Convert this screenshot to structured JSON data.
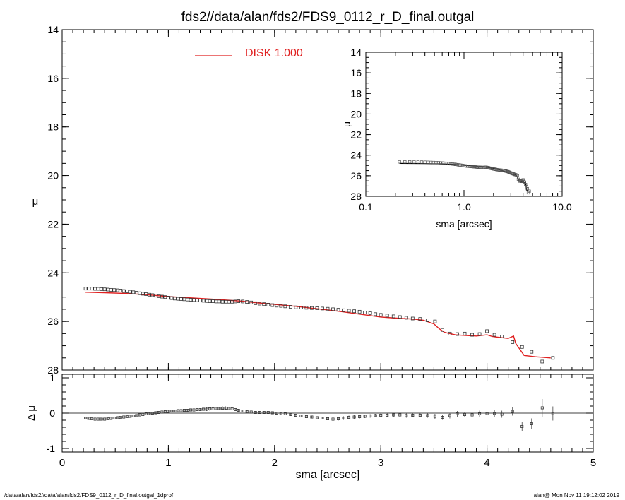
{
  "title": "fds2//data/alan/fds2/FDS9_0112_r_D_final.outgal",
  "footer": {
    "left": "/data/alan/fds2//data/alan/fds2/FDS9_0112_r_D_final.outgal_1dprof",
    "right": "alan@  Mon Nov 11 19:12:02 2019"
  },
  "colors": {
    "model": "#e02020",
    "data": "#000000",
    "frame": "#000000"
  },
  "chart_data": [
    {
      "type": "scatter",
      "name": "main",
      "xlim": [
        0,
        5
      ],
      "ylim": [
        14,
        28
      ],
      "inverted_y": true,
      "xticks": [
        0,
        1,
        2,
        3,
        4,
        5
      ],
      "yticks": [
        14,
        16,
        18,
        20,
        22,
        24,
        26,
        28
      ],
      "ylabel": "μ",
      "legend": {
        "label": "DISK  1.000",
        "placement": "top-center"
      },
      "data_x": [
        0.22,
        0.25,
        0.28,
        0.31,
        0.34,
        0.37,
        0.4,
        0.43,
        0.46,
        0.49,
        0.52,
        0.55,
        0.58,
        0.61,
        0.64,
        0.67,
        0.7,
        0.73,
        0.76,
        0.79,
        0.82,
        0.85,
        0.88,
        0.91,
        0.94,
        0.97,
        1.0,
        1.03,
        1.06,
        1.09,
        1.12,
        1.15,
        1.18,
        1.21,
        1.24,
        1.27,
        1.3,
        1.33,
        1.36,
        1.39,
        1.42,
        1.45,
        1.48,
        1.51,
        1.54,
        1.57,
        1.6,
        1.63,
        1.66,
        1.7,
        1.74,
        1.78,
        1.82,
        1.86,
        1.9,
        1.94,
        1.98,
        2.02,
        2.06,
        2.1,
        2.15,
        2.2,
        2.25,
        2.3,
        2.35,
        2.4,
        2.45,
        2.5,
        2.55,
        2.6,
        2.65,
        2.7,
        2.75,
        2.8,
        2.85,
        2.9,
        2.95,
        3.0,
        3.06,
        3.12,
        3.18,
        3.24,
        3.3,
        3.37,
        3.44,
        3.51,
        3.58,
        3.65,
        3.72,
        3.79,
        3.86,
        3.93,
        4.0,
        4.07,
        4.14,
        4.24,
        4.33,
        4.42,
        4.52,
        4.62
      ],
      "data_y": [
        24.65,
        24.65,
        24.65,
        24.66,
        24.66,
        24.67,
        24.68,
        24.69,
        24.7,
        24.71,
        24.72,
        24.73,
        24.75,
        24.76,
        24.78,
        24.8,
        24.82,
        24.84,
        24.86,
        24.88,
        24.9,
        24.92,
        24.94,
        24.96,
        24.98,
        25.0,
        25.02,
        25.04,
        25.06,
        25.07,
        25.08,
        25.09,
        25.1,
        25.11,
        25.12,
        25.13,
        25.14,
        25.15,
        25.16,
        25.17,
        25.17,
        25.18,
        25.18,
        25.19,
        25.19,
        25.19,
        25.19,
        25.18,
        25.17,
        25.18,
        25.2,
        25.22,
        25.25,
        25.27,
        25.29,
        25.31,
        25.33,
        25.35,
        25.36,
        25.38,
        25.4,
        25.42,
        25.43,
        25.44,
        25.45,
        25.46,
        25.47,
        25.48,
        25.5,
        25.52,
        25.54,
        25.56,
        25.58,
        25.6,
        25.63,
        25.66,
        25.7,
        25.73,
        25.76,
        25.79,
        25.82,
        25.85,
        25.88,
        25.9,
        25.95,
        26.0,
        26.35,
        26.5,
        26.52,
        26.5,
        26.55,
        26.52,
        26.4,
        26.55,
        26.62,
        26.85,
        27.05,
        27.25,
        27.65,
        27.5
      ],
      "model_x": [
        0.22,
        0.4,
        0.6,
        0.8,
        1.0,
        1.2,
        1.4,
        1.6,
        1.7,
        1.8,
        1.9,
        2.0,
        2.2,
        2.4,
        2.6,
        2.8,
        3.0,
        3.1,
        3.2,
        3.3,
        3.4,
        3.5,
        3.55,
        3.6,
        3.7,
        3.8,
        3.9,
        4.0,
        4.05,
        4.1,
        4.2,
        4.25,
        4.27,
        4.35,
        4.45,
        4.6
      ],
      "model_y": [
        24.8,
        24.82,
        24.85,
        24.9,
        24.98,
        25.03,
        25.08,
        25.14,
        25.17,
        25.22,
        25.26,
        25.3,
        25.38,
        25.48,
        25.58,
        25.7,
        25.82,
        25.85,
        25.88,
        25.9,
        25.95,
        26.1,
        26.3,
        26.45,
        26.55,
        26.58,
        26.6,
        26.55,
        26.62,
        26.65,
        26.7,
        26.6,
        26.9,
        27.4,
        27.45,
        27.5
      ]
    },
    {
      "type": "scatter",
      "name": "residuals",
      "xlim": [
        0,
        5
      ],
      "ylim": [
        -1.1,
        1.1
      ],
      "xticks": [
        0,
        1,
        2,
        3,
        4,
        5
      ],
      "yticks": [
        -1,
        0,
        1
      ],
      "xlabel": "sma [arcsec]",
      "ylabel": "Δ μ",
      "res_x": [
        0.22,
        0.25,
        0.28,
        0.31,
        0.34,
        0.37,
        0.4,
        0.43,
        0.46,
        0.49,
        0.52,
        0.55,
        0.58,
        0.61,
        0.64,
        0.67,
        0.7,
        0.73,
        0.76,
        0.79,
        0.82,
        0.85,
        0.88,
        0.91,
        0.94,
        0.97,
        1.0,
        1.03,
        1.06,
        1.09,
        1.12,
        1.15,
        1.18,
        1.21,
        1.24,
        1.27,
        1.3,
        1.33,
        1.36,
        1.39,
        1.42,
        1.45,
        1.48,
        1.51,
        1.54,
        1.57,
        1.6,
        1.63,
        1.66,
        1.7,
        1.74,
        1.78,
        1.82,
        1.86,
        1.9,
        1.94,
        1.98,
        2.02,
        2.06,
        2.1,
        2.15,
        2.2,
        2.25,
        2.3,
        2.35,
        2.4,
        2.45,
        2.5,
        2.55,
        2.6,
        2.65,
        2.7,
        2.75,
        2.8,
        2.85,
        2.9,
        2.95,
        3.0,
        3.06,
        3.12,
        3.18,
        3.24,
        3.3,
        3.37,
        3.44,
        3.51,
        3.58,
        3.65,
        3.72,
        3.79,
        3.86,
        3.93,
        4.0,
        4.07,
        4.14,
        4.24,
        4.33,
        4.42,
        4.52,
        4.62
      ],
      "res_y": [
        -0.14,
        -0.15,
        -0.16,
        -0.17,
        -0.17,
        -0.17,
        -0.17,
        -0.16,
        -0.15,
        -0.14,
        -0.13,
        -0.12,
        -0.11,
        -0.1,
        -0.09,
        -0.08,
        -0.07,
        -0.05,
        -0.04,
        -0.02,
        -0.01,
        0.0,
        0.01,
        0.02,
        0.03,
        0.04,
        0.05,
        0.06,
        0.06,
        0.07,
        0.07,
        0.08,
        0.08,
        0.09,
        0.09,
        0.1,
        0.1,
        0.11,
        0.11,
        0.12,
        0.12,
        0.13,
        0.13,
        0.14,
        0.14,
        0.13,
        0.12,
        0.1,
        0.08,
        0.06,
        0.04,
        0.03,
        0.02,
        0.02,
        0.02,
        0.02,
        0.01,
        0.0,
        -0.01,
        -0.02,
        -0.04,
        -0.06,
        -0.08,
        -0.1,
        -0.11,
        -0.13,
        -0.14,
        -0.16,
        -0.17,
        -0.16,
        -0.14,
        -0.12,
        -0.11,
        -0.1,
        -0.09,
        -0.08,
        -0.07,
        -0.06,
        -0.06,
        -0.05,
        -0.05,
        -0.07,
        -0.06,
        -0.06,
        -0.07,
        -0.09,
        -0.12,
        -0.07,
        -0.02,
        -0.04,
        -0.05,
        -0.02,
        -0.01,
        -0.01,
        -0.03,
        0.05,
        -0.38,
        -0.3,
        0.15,
        -0.01
      ],
      "res_err": [
        0.02,
        0.02,
        0.02,
        0.02,
        0.02,
        0.02,
        0.02,
        0.02,
        0.02,
        0.02,
        0.02,
        0.02,
        0.02,
        0.02,
        0.02,
        0.02,
        0.02,
        0.02,
        0.02,
        0.03,
        0.03,
        0.03,
        0.03,
        0.03,
        0.03,
        0.03,
        0.03,
        0.03,
        0.04,
        0.04,
        0.04,
        0.04,
        0.04,
        0.04,
        0.04,
        0.04,
        0.04,
        0.04,
        0.05,
        0.05,
        0.05,
        0.05,
        0.05,
        0.05,
        0.05,
        0.05,
        0.05,
        0.04,
        0.04,
        0.04,
        0.04,
        0.04,
        0.04,
        0.04,
        0.04,
        0.04,
        0.04,
        0.04,
        0.04,
        0.04,
        0.04,
        0.04,
        0.04,
        0.04,
        0.04,
        0.04,
        0.04,
        0.04,
        0.04,
        0.05,
        0.05,
        0.05,
        0.05,
        0.05,
        0.05,
        0.05,
        0.05,
        0.05,
        0.06,
        0.06,
        0.06,
        0.06,
        0.06,
        0.06,
        0.06,
        0.07,
        0.07,
        0.08,
        0.08,
        0.08,
        0.08,
        0.09,
        0.09,
        0.09,
        0.1,
        0.12,
        0.13,
        0.15,
        0.25,
        0.2
      ]
    },
    {
      "type": "line",
      "name": "inset",
      "xscale": "log",
      "xlim": [
        0.1,
        10.0
      ],
      "ylim": [
        14,
        28
      ],
      "inverted_y": true,
      "xticks": [
        0.1,
        1.0,
        10.0
      ],
      "xtick_labels": [
        "0.1",
        "1.0",
        "10.0"
      ],
      "yticks": [
        14,
        16,
        18,
        20,
        22,
        24,
        26,
        28
      ],
      "xlabel": "sma [arcsec]",
      "ylabel": "μ"
    }
  ]
}
